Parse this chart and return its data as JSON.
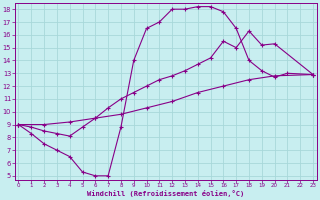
{
  "bg_color": "#c8eef0",
  "grid_color": "#a8d8da",
  "line_color": "#880088",
  "xlabel": "Windchill (Refroidissement éolien,°C)",
  "xlim": [
    -0.3,
    23.3
  ],
  "ylim": [
    4.7,
    18.5
  ],
  "xticks": [
    0,
    1,
    2,
    3,
    4,
    5,
    6,
    7,
    8,
    9,
    10,
    11,
    12,
    13,
    14,
    15,
    16,
    17,
    18,
    19,
    20,
    21,
    22,
    23
  ],
  "yticks": [
    5,
    6,
    7,
    8,
    9,
    10,
    11,
    12,
    13,
    14,
    15,
    16,
    17,
    18
  ],
  "curve1_x": [
    0,
    1,
    2,
    3,
    4,
    5,
    6,
    7,
    8,
    9,
    10,
    11,
    12,
    13,
    14,
    15,
    16,
    17,
    18,
    19,
    20,
    21,
    23
  ],
  "curve1_y": [
    9.0,
    8.3,
    7.5,
    7.0,
    6.5,
    5.3,
    5.0,
    5.0,
    8.8,
    14.0,
    16.5,
    17.0,
    18.0,
    18.0,
    18.2,
    18.2,
    17.8,
    16.5,
    14.0,
    13.2,
    12.7,
    13.0,
    12.9
  ],
  "curve2_x": [
    0,
    1,
    2,
    3,
    4,
    5,
    6,
    7,
    8,
    9,
    10,
    11,
    12,
    13,
    14,
    15,
    16,
    17,
    18,
    19,
    20,
    23
  ],
  "curve2_y": [
    9.0,
    8.8,
    8.5,
    8.3,
    8.1,
    8.8,
    9.5,
    10.3,
    11.0,
    11.5,
    12.0,
    12.5,
    12.8,
    13.2,
    13.7,
    14.2,
    15.5,
    15.0,
    16.3,
    15.2,
    15.3,
    12.9
  ],
  "curve3_x": [
    0,
    2,
    4,
    6,
    8,
    10,
    12,
    14,
    16,
    18,
    20,
    23
  ],
  "curve3_y": [
    9.0,
    9.0,
    9.2,
    9.5,
    9.8,
    10.3,
    10.8,
    11.5,
    12.0,
    12.5,
    12.8,
    12.9
  ]
}
